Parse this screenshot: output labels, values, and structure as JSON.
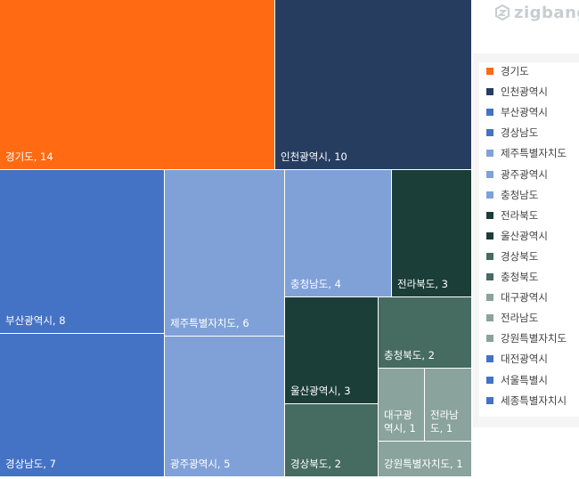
{
  "brand": {
    "name": "zigbang",
    "icon": "zigbang-logo-icon"
  },
  "chart_data": {
    "type": "treemap",
    "title": "",
    "legend_position": "right",
    "items": [
      {
        "name": "경기도",
        "value": 14,
        "color": "#ff6a13",
        "label": "경기도, 14"
      },
      {
        "name": "인천광역시",
        "value": 10,
        "color": "#263d60",
        "label": "인천광역시, 10"
      },
      {
        "name": "부산광역시",
        "value": 8,
        "color": "#4472c4",
        "label": "부산광역시, 8"
      },
      {
        "name": "경상남도",
        "value": 7,
        "color": "#4472c4",
        "label": "경상남도, 7"
      },
      {
        "name": "제주특별자치도",
        "value": 6,
        "color": "#7fa1d8",
        "label": "제주특별자치도, 6"
      },
      {
        "name": "광주광역시",
        "value": 5,
        "color": "#7fa1d8",
        "label": "광주광역시, 5"
      },
      {
        "name": "충청남도",
        "value": 4,
        "color": "#7fa1d8",
        "label": "충청남도, 4"
      },
      {
        "name": "전라북도",
        "value": 3,
        "color": "#1b3e38",
        "label": "전라북도, 3"
      },
      {
        "name": "울산광역시",
        "value": 3,
        "color": "#1b3e38",
        "label": "울산광역시, 3"
      },
      {
        "name": "경상북도",
        "value": 2,
        "color": "#466b60",
        "label": "경상북도, 2"
      },
      {
        "name": "충청북도",
        "value": 2,
        "color": "#466b60",
        "label": "충청북도, 2"
      },
      {
        "name": "대구광역시",
        "value": 1,
        "color": "#8aa39c",
        "label": "대구광\n역시, 1"
      },
      {
        "name": "전라남도",
        "value": 1,
        "color": "#8aa39c",
        "label": "전라남\n도, 1"
      },
      {
        "name": "강원특별자치도",
        "value": 1,
        "color": "#8aa39c",
        "label": "강원특별자치도, 1"
      }
    ],
    "legend": [
      {
        "name": "경기도",
        "color": "#ff6a13"
      },
      {
        "name": "인천광역시",
        "color": "#263d60"
      },
      {
        "name": "부산광역시",
        "color": "#4472c4"
      },
      {
        "name": "경상남도",
        "color": "#4472c4"
      },
      {
        "name": "제주특별자치도",
        "color": "#7fa1d8"
      },
      {
        "name": "광주광역시",
        "color": "#7fa1d8"
      },
      {
        "name": "충청남도",
        "color": "#7fa1d8"
      },
      {
        "name": "전라북도",
        "color": "#1b3e38"
      },
      {
        "name": "울산광역시",
        "color": "#1b3e38"
      },
      {
        "name": "경상북도",
        "color": "#466b60"
      },
      {
        "name": "충청북도",
        "color": "#466b60"
      },
      {
        "name": "대구광역시",
        "color": "#8aa39c"
      },
      {
        "name": "전라남도",
        "color": "#8aa39c"
      },
      {
        "name": "강원특별자치도",
        "color": "#8aa39c"
      },
      {
        "name": "대전광역시",
        "color": "#4472c4"
      },
      {
        "name": "서울특별시",
        "color": "#4472c4"
      },
      {
        "name": "세종특별자치시",
        "color": "#4472c4"
      }
    ]
  }
}
